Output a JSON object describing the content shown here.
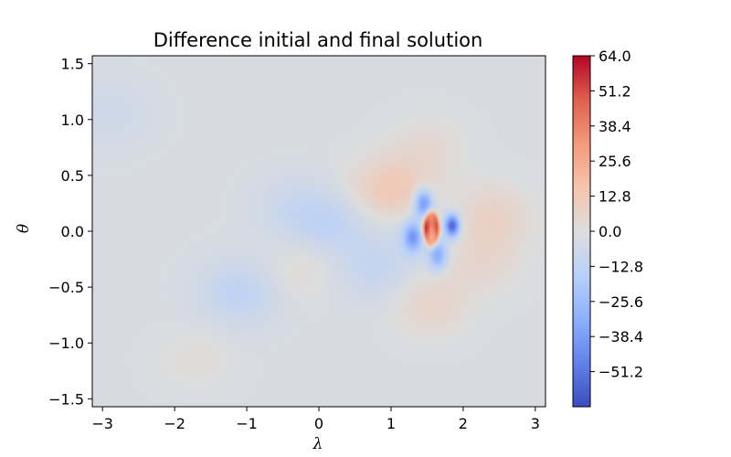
{
  "chart_data": {
    "type": "heatmap",
    "title": "Difference initial and final solution",
    "xlabel": "λ",
    "ylabel": "θ",
    "xlim": [
      -3.14159,
      3.14159
    ],
    "ylim": [
      -1.5708,
      1.5708
    ],
    "x_ticks": [
      -3,
      -2,
      -1,
      0,
      1,
      2,
      3
    ],
    "x_tick_labels": [
      "−3",
      "−2",
      "−1",
      "0",
      "1",
      "2",
      "3"
    ],
    "y_ticks": [
      1.5,
      1.0,
      0.5,
      0.0,
      -0.5,
      -1.0,
      -1.5
    ],
    "y_tick_labels": [
      "1.5",
      "1.0",
      "0.5",
      "0.0",
      "−0.5",
      "−1.0",
      "−1.5"
    ],
    "colormap": "coolwarm",
    "colorbar": {
      "vmin": -64.0,
      "vmax": 64.0,
      "ticks": [
        64.0,
        51.2,
        38.4,
        25.6,
        12.8,
        0.0,
        -12.8,
        -25.6,
        -38.4,
        -51.2
      ],
      "tick_labels": [
        "64.0",
        "51.2",
        "38.4",
        "25.6",
        "12.8",
        "0.0",
        "−12.8",
        "−25.6",
        "−38.4",
        "−51.2"
      ]
    },
    "features": [
      {
        "lambda": 1.55,
        "theta": 0.03,
        "value": 64,
        "kind": "positive peak (ring)"
      },
      {
        "lambda": 1.5,
        "theta": 0.03,
        "value": -6,
        "kind": "inner core"
      },
      {
        "lambda": 1.85,
        "theta": 0.05,
        "value": -55,
        "kind": "negative lobe east"
      },
      {
        "lambda": 1.45,
        "theta": 0.25,
        "value": -40,
        "kind": "negative lobe north"
      },
      {
        "lambda": 1.3,
        "theta": -0.05,
        "value": -35,
        "kind": "negative lobe west"
      },
      {
        "lambda": 1.65,
        "theta": -0.22,
        "value": -30,
        "kind": "negative lobe south"
      },
      {
        "lambda": 1.1,
        "theta": 0.35,
        "value": 12,
        "kind": "weak positive"
      },
      {
        "lambda": 2.4,
        "theta": 0.15,
        "value": 10,
        "kind": "weak positive"
      },
      {
        "lambda": 2.25,
        "theta": -0.25,
        "value": 8,
        "kind": "weak positive"
      },
      {
        "lambda": 1.55,
        "theta": -0.65,
        "value": 9,
        "kind": "weak positive"
      },
      {
        "lambda": 1.5,
        "theta": 0.75,
        "value": 6,
        "kind": "weak positive"
      },
      {
        "lambda": -1.1,
        "theta": -0.55,
        "value": -10,
        "kind": "weak negative"
      },
      {
        "lambda": 0.2,
        "theta": 0.05,
        "value": -9,
        "kind": "weak negative"
      },
      {
        "lambda": 0.8,
        "theta": -0.35,
        "value": -8,
        "kind": "weak negative"
      },
      {
        "lambda": -0.3,
        "theta": 0.2,
        "value": -6,
        "kind": "weak negative"
      },
      {
        "lambda": -2.9,
        "theta": 1.05,
        "value": -4,
        "kind": "weak negative"
      },
      {
        "lambda": -1.7,
        "theta": -1.15,
        "value": 4,
        "kind": "weak positive"
      },
      {
        "lambda": -0.2,
        "theta": -0.35,
        "value": 5,
        "kind": "weak positive"
      },
      {
        "lambda": 0.8,
        "theta": 0.4,
        "value": 5,
        "kind": "weak positive"
      }
    ]
  }
}
